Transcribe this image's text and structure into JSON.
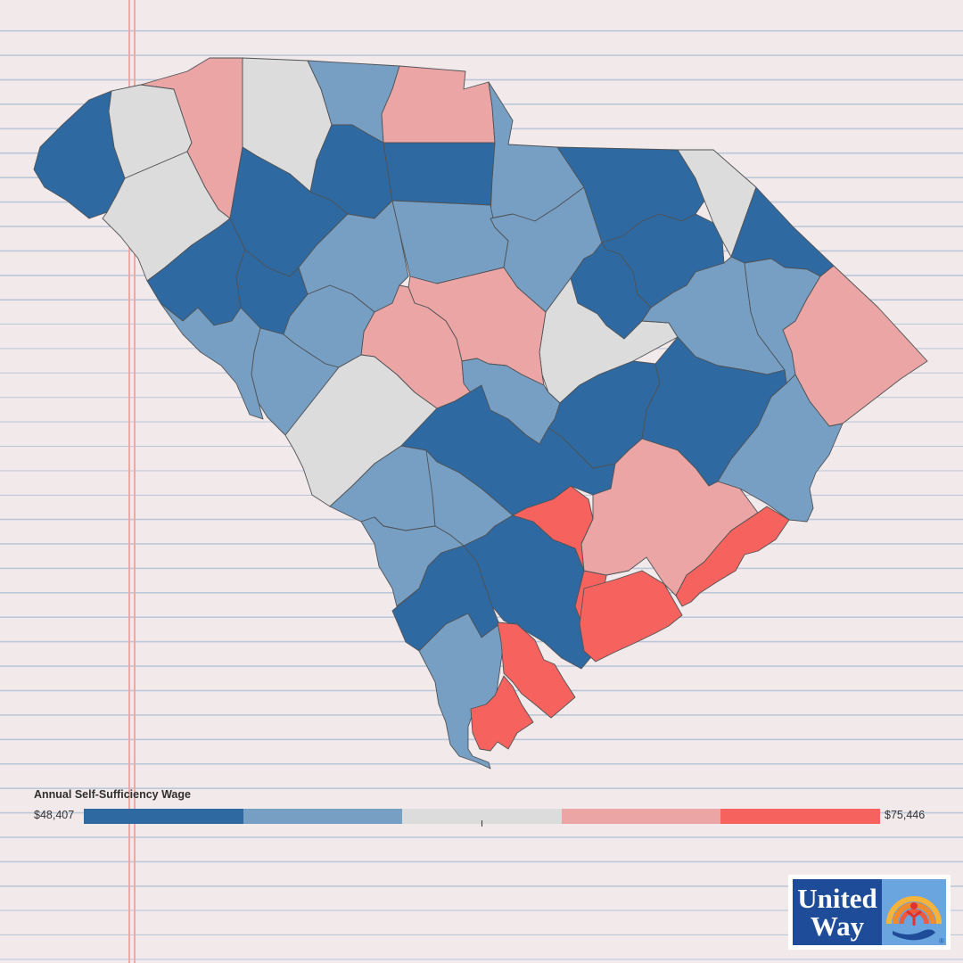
{
  "legend": {
    "title": "Annual Self-Sufficiency Wage",
    "min_label": "$48,407",
    "max_label": "$75,446",
    "bins": [
      "#2e6aa1",
      "#779fc3",
      "#dcdcdc",
      "#eaa5a4",
      "#f6635f"
    ]
  },
  "logo": {
    "line1": "United",
    "line2": "Way",
    "registered_mark": "®"
  },
  "colors": {
    "background": "#f2e9ea",
    "rule_line": "#b9c7d8",
    "margin_line": "#f0a7a5"
  },
  "map": {
    "region": "South Carolina",
    "counties": [
      {
        "id": "oconee",
        "bin": 0
      },
      {
        "id": "pickens",
        "bin": 2
      },
      {
        "id": "greenville",
        "bin": 3
      },
      {
        "id": "spartanburg",
        "bin": 2
      },
      {
        "id": "cherokee",
        "bin": 1
      },
      {
        "id": "york",
        "bin": 3
      },
      {
        "id": "lancaster",
        "bin": 1
      },
      {
        "id": "anderson",
        "bin": 2
      },
      {
        "id": "laurens",
        "bin": 0
      },
      {
        "id": "union",
        "bin": 0
      },
      {
        "id": "chester",
        "bin": 0
      },
      {
        "id": "abbeville",
        "bin": 0
      },
      {
        "id": "greenwood",
        "bin": 0
      },
      {
        "id": "newberry",
        "bin": 1
      },
      {
        "id": "fairfield",
        "bin": 1
      },
      {
        "id": "kershaw",
        "bin": 1
      },
      {
        "id": "chesterfield",
        "bin": 0
      },
      {
        "id": "marlboro",
        "bin": 2
      },
      {
        "id": "dillon",
        "bin": 0
      },
      {
        "id": "darlington",
        "bin": 0
      },
      {
        "id": "lee",
        "bin": 0
      },
      {
        "id": "sumter",
        "bin": 2
      },
      {
        "id": "richland",
        "bin": 3
      },
      {
        "id": "lexington",
        "bin": 3
      },
      {
        "id": "saluda",
        "bin": 1
      },
      {
        "id": "mccormick",
        "bin": 1
      },
      {
        "id": "edgefield",
        "bin": 1
      },
      {
        "id": "aiken",
        "bin": 2
      },
      {
        "id": "calhoun",
        "bin": 1
      },
      {
        "id": "orangeburg",
        "bin": 0
      },
      {
        "id": "clarendon",
        "bin": 0
      },
      {
        "id": "florence",
        "bin": 1
      },
      {
        "id": "marion",
        "bin": 1
      },
      {
        "id": "horry",
        "bin": 3
      },
      {
        "id": "williamsburg",
        "bin": 0
      },
      {
        "id": "georgetown",
        "bin": 1
      },
      {
        "id": "barnwell",
        "bin": 1
      },
      {
        "id": "bamberg",
        "bin": 1
      },
      {
        "id": "allendale",
        "bin": 1
      },
      {
        "id": "hampton",
        "bin": 0
      },
      {
        "id": "colleton",
        "bin": 0
      },
      {
        "id": "dorchester",
        "bin": 4
      },
      {
        "id": "berkeley",
        "bin": 3
      },
      {
        "id": "charleston-north",
        "bin": 4
      },
      {
        "id": "charleston-south",
        "bin": 4
      },
      {
        "id": "jasper",
        "bin": 1
      },
      {
        "id": "beaufort-north",
        "bin": 4
      },
      {
        "id": "beaufort-south",
        "bin": 4
      }
    ]
  }
}
